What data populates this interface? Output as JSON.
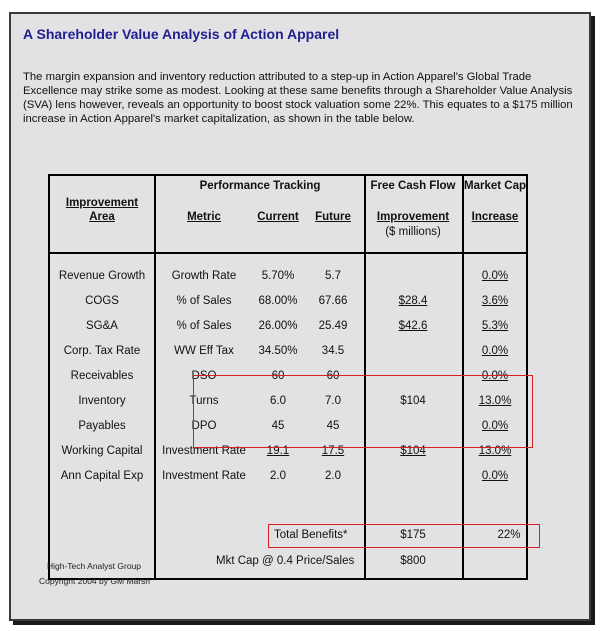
{
  "title": "A Shareholder Value Analysis of Action Apparel",
  "intro": "The margin expansion and inventory reduction attributed to a step-up in Action Apparel's Global Trade Excellence may strike some as modest. Looking at these same benefits through a Shareholder Value Analysis (SVA) lens however, reveals an opportunity to boost stock valuation some 22%. This equates to a $175 million increase in Action Apparel's market capitalization, as shown in the table below.",
  "headers": {
    "improvement": "Improvement",
    "area": "Area",
    "performance_tracking": "Performance Tracking",
    "metric": "Metric",
    "current": "Current",
    "future": "Future",
    "fcf": "Free Cash Flow",
    "fcf_improvement": "Improvement",
    "fcf_units": "($ millions)",
    "market_cap": "Market Cap",
    "increase": "Increase"
  },
  "rows": [
    {
      "area": "Revenue Growth",
      "metric": "Growth Rate",
      "current": "5.70%",
      "future": "5.7",
      "fcf": "",
      "increase": "0.0%"
    },
    {
      "area": "COGS",
      "metric": "% of Sales",
      "current": "68.00%",
      "future": "67.66",
      "fcf": "$28.4",
      "increase": "3.6%"
    },
    {
      "area": "SG&A",
      "metric": "% of Sales",
      "current": "26.00%",
      "future": "25.49",
      "fcf": "$42.6",
      "increase": "5.3%"
    },
    {
      "area": "Corp. Tax Rate",
      "metric": "WW Eff Tax",
      "current": "34.50%",
      "future": "34.5",
      "fcf": "",
      "increase": "0.0%"
    },
    {
      "area": "Receivables",
      "metric": "DSO",
      "current": "60",
      "future": "60",
      "fcf": "",
      "increase": "0.0%"
    },
    {
      "area": "Inventory",
      "metric": "Turns",
      "current": "6.0",
      "future": "7.0",
      "fcf": "$104",
      "increase": "13.0%"
    },
    {
      "area": "Payables",
      "metric": "DPO",
      "current": "45",
      "future": "45",
      "fcf": "",
      "increase": "0.0%"
    },
    {
      "area": "Working Capital",
      "metric": "Investment Rate",
      "current": "19.1",
      "future": "17.5",
      "fcf": "$104",
      "increase": "13.0%"
    },
    {
      "area": "Ann Capital Exp",
      "metric": "Investment Rate",
      "current": "2.0",
      "future": "2.0",
      "fcf": "",
      "increase": "0.0%"
    }
  ],
  "total": {
    "label": "Total Benefits*",
    "fcf": "$175",
    "increase": "22%"
  },
  "mktcap": {
    "label": "Mkt Cap @ 0.4 Price/Sales",
    "value": "$800"
  },
  "footer": {
    "line1": "High-Tech Analyst Group",
    "line2": "Copyright 2004 by GM Marsh"
  },
  "colors": {
    "title": "#1f1f8f",
    "highlight_box": "#d42020",
    "background": "#e2e2e4"
  }
}
